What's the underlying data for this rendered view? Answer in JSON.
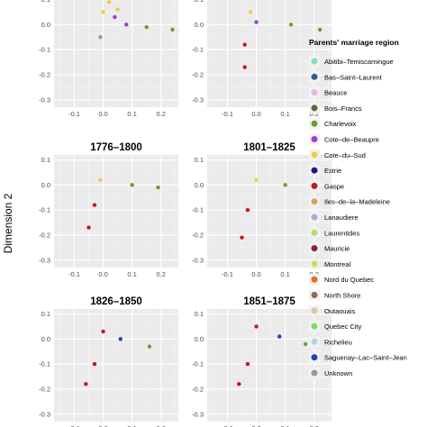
{
  "chart_data": {
    "type": "scatter",
    "ylabel": "Dimension 2",
    "xticks": [
      "-0.1",
      "0.0",
      "0.1",
      "0.2"
    ],
    "yticks": [
      "0.1",
      "0.0",
      "-0.1",
      "-0.2",
      "-0.3"
    ],
    "xlim": [
      -0.17,
      0.26
    ],
    "ylim": [
      -0.33,
      0.12
    ],
    "panels": [
      {
        "title": "",
        "points": [
          {
            "x": 0.0,
            "y": 0.05,
            "region": "Cote-du-Sud"
          },
          {
            "x": 0.02,
            "y": 0.09,
            "region": "Cote-du-Sud"
          },
          {
            "x": 0.05,
            "y": 0.06,
            "region": "Cote-du-Sud"
          },
          {
            "x": 0.04,
            "y": 0.03,
            "region": "Cote-de-Beaupre"
          },
          {
            "x": 0.08,
            "y": 0.0,
            "region": "Cote-de-Beaupre"
          },
          {
            "x": 0.15,
            "y": -0.01,
            "region": "Charlevoix"
          },
          {
            "x": 0.24,
            "y": -0.02,
            "region": "Charlevoix"
          },
          {
            "x": -0.01,
            "y": -0.05,
            "region": "Unknown"
          }
        ]
      },
      {
        "title": "",
        "points": [
          {
            "x": -0.02,
            "y": 0.05,
            "region": "Cote-du-Sud"
          },
          {
            "x": 0.0,
            "y": 0.01,
            "region": "Cote-de-Beaupre"
          },
          {
            "x": 0.12,
            "y": 0.0,
            "region": "Charlevoix"
          },
          {
            "x": 0.22,
            "y": -0.02,
            "region": "Charlevoix"
          },
          {
            "x": -0.04,
            "y": -0.08,
            "region": "Gaspe"
          },
          {
            "x": -0.04,
            "y": -0.17,
            "region": "Gaspe"
          }
        ]
      },
      {
        "title": "1776–1800",
        "points": [
          {
            "x": -0.01,
            "y": 0.02,
            "region": "Cote-du-Sud"
          },
          {
            "x": 0.1,
            "y": 0.0,
            "region": "Charlevoix"
          },
          {
            "x": 0.19,
            "y": -0.01,
            "region": "Charlevoix"
          },
          {
            "x": -0.03,
            "y": -0.08,
            "region": "Gaspe"
          },
          {
            "x": -0.05,
            "y": -0.17,
            "region": "Gaspe"
          }
        ]
      },
      {
        "title": "1801–1825",
        "points": [
          {
            "x": 0.0,
            "y": 0.02,
            "region": "Cote-du-Sud"
          },
          {
            "x": 0.1,
            "y": 0.0,
            "region": "Charlevoix"
          },
          {
            "x": 0.19,
            "y": -0.01,
            "region": "Charlevoix"
          },
          {
            "x": -0.03,
            "y": -0.1,
            "region": "Gaspe"
          },
          {
            "x": -0.05,
            "y": -0.21,
            "region": "Gaspe"
          }
        ]
      },
      {
        "title": "1826–1850",
        "points": [
          {
            "x": 0.0,
            "y": 0.03,
            "region": "Gaspe"
          },
          {
            "x": 0.06,
            "y": 0.0,
            "region": "Saguenay-Lac-Saint-Jean"
          },
          {
            "x": 0.16,
            "y": -0.03,
            "region": "Charlevoix"
          },
          {
            "x": -0.03,
            "y": -0.1,
            "region": "Gaspe"
          },
          {
            "x": -0.06,
            "y": -0.18,
            "region": "Gaspe"
          }
        ]
      },
      {
        "title": "1851–1875",
        "points": [
          {
            "x": 0.0,
            "y": 0.05,
            "region": "Gaspe"
          },
          {
            "x": 0.08,
            "y": 0.01,
            "region": "Saguenay-Lac-Saint-Jean"
          },
          {
            "x": 0.17,
            "y": -0.02,
            "region": "Charlevoix"
          },
          {
            "x": -0.03,
            "y": -0.1,
            "region": "Gaspe"
          },
          {
            "x": -0.06,
            "y": -0.18,
            "region": "Gaspe"
          }
        ]
      }
    ],
    "legend": {
      "title": "Parents' marriage region",
      "placement": "right",
      "entries": [
        {
          "name": "Abitibi–Temiscamingue",
          "color": "#7fe0c0"
        },
        {
          "name": "Bas–Saint–Laurent",
          "color": "#2a5f8f"
        },
        {
          "name": "Beauce",
          "color": "#e6b3e6"
        },
        {
          "name": "Bois–Francs",
          "color": "#5a6b3a"
        },
        {
          "name": "Charlevoix",
          "color": "#6a9e2f"
        },
        {
          "name": "Cote–de–Beaupre",
          "color": "#9b3fd6"
        },
        {
          "name": "Cote–du–Sud",
          "color": "#f2cc3c"
        },
        {
          "name": "Estrie",
          "color": "#2e0f8a"
        },
        {
          "name": "Gaspe",
          "color": "#c8161d"
        },
        {
          "name": "Iles–de–la–Madeleine",
          "color": "#d9a55a"
        },
        {
          "name": "Lanaudiere",
          "color": "#b5a6d9"
        },
        {
          "name": "Laurentides",
          "color": "#b4dd6a"
        },
        {
          "name": "Mauricie",
          "color": "#8a1c4a"
        },
        {
          "name": "Montreal",
          "color": "#d2dc5a"
        },
        {
          "name": "Nord du Quebec",
          "color": "#e86a1c"
        },
        {
          "name": "North Shore",
          "color": "#8e6a55"
        },
        {
          "name": "Outaouais",
          "color": "#e0c7a6"
        },
        {
          "name": "Quebec City",
          "color": "#7ee05a"
        },
        {
          "name": "Richelieu",
          "color": "#a8d8ea"
        },
        {
          "name": "Saguenay–Lac–Saint–Jean",
          "color": "#1f3fbf"
        },
        {
          "name": "Unknown",
          "color": "#8f9aa6"
        }
      ]
    }
  }
}
